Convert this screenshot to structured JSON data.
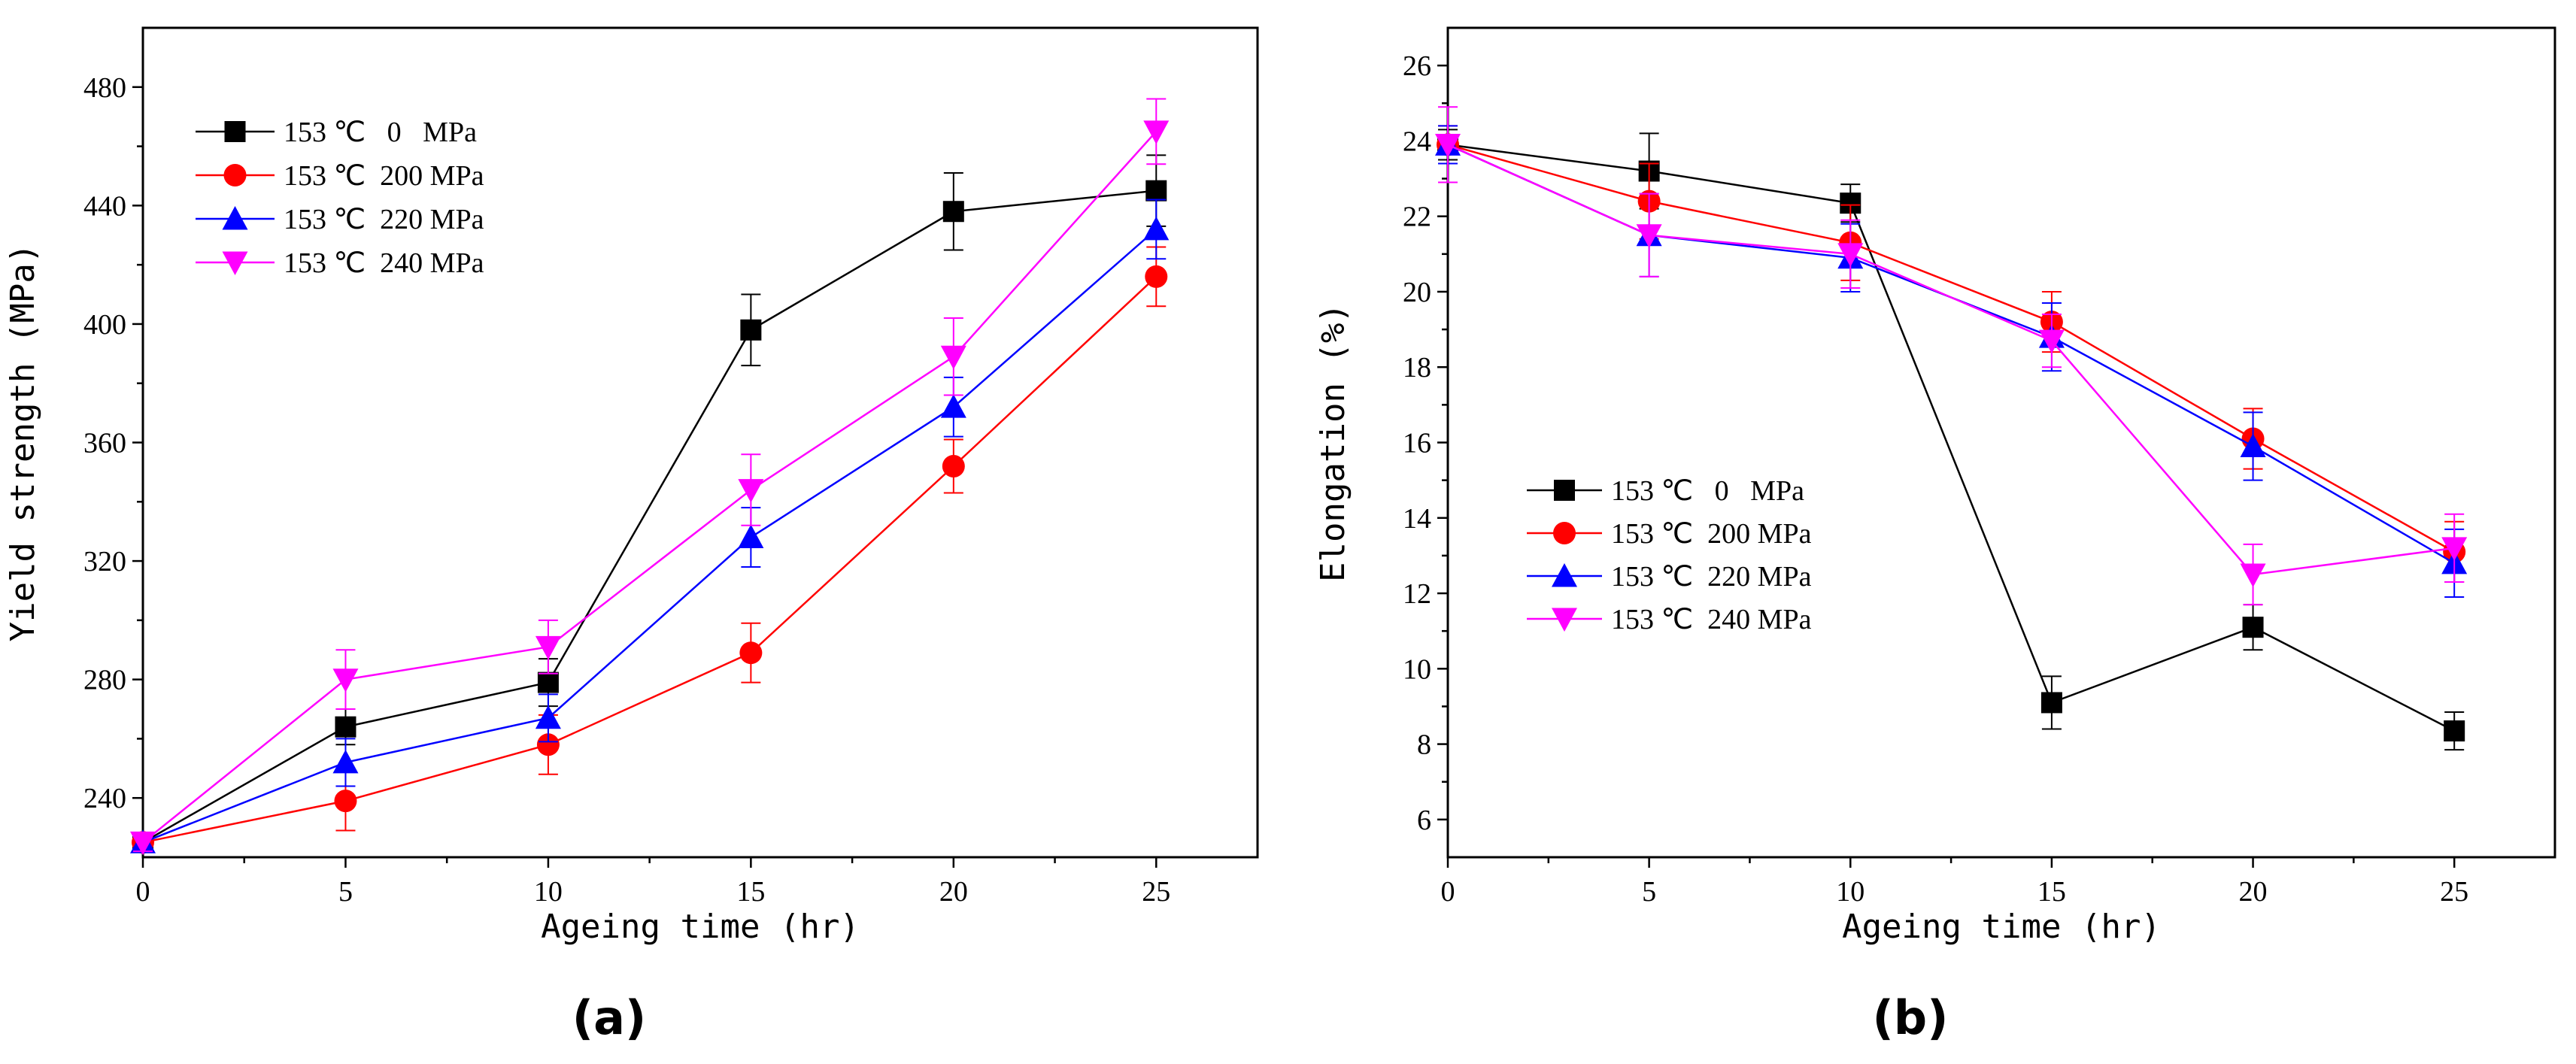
{
  "figure": {
    "panel_labels": [
      "(a)",
      "(b)"
    ]
  },
  "chart_data": [
    {
      "type": "line",
      "panel": "(a)",
      "title": "",
      "xlabel": "Ageing time (hr)",
      "ylabel": "Yield strength (MPa)",
      "xlim": [
        0,
        27.5
      ],
      "ylim": [
        220,
        500
      ],
      "xticks": [
        0,
        5,
        10,
        15,
        20,
        25
      ],
      "yticks": [
        240,
        280,
        320,
        360,
        400,
        440,
        480
      ],
      "grid": false,
      "legend_position": "top-left",
      "x": [
        0,
        5,
        10,
        15,
        20,
        25
      ],
      "series": [
        {
          "name": "153 ℃   0   MPa",
          "color": "#000000",
          "marker": "square",
          "values": [
            225,
            264,
            279,
            398,
            438,
            445
          ],
          "errors": [
            3,
            6,
            8,
            12,
            13,
            12
          ]
        },
        {
          "name": "153 ℃  200 MPa",
          "color": "#ff0000",
          "marker": "circle",
          "values": [
            225,
            239,
            258,
            289,
            352,
            416
          ],
          "errors": [
            3,
            10,
            10,
            10,
            9,
            10
          ]
        },
        {
          "name": "153 ℃  220 MPa",
          "color": "#0000ff",
          "marker": "triangle-up",
          "values": [
            225,
            252,
            267,
            328,
            372,
            432
          ],
          "errors": [
            3,
            8,
            8,
            10,
            10,
            10
          ]
        },
        {
          "name": "153 ℃  240 MPa",
          "color": "#ff00ff",
          "marker": "triangle-down",
          "values": [
            225,
            280,
            291,
            344,
            389,
            465
          ],
          "errors": [
            3,
            10,
            9,
            12,
            13,
            11
          ]
        }
      ]
    },
    {
      "type": "line",
      "panel": "(b)",
      "title": "",
      "xlabel": "Ageing time (hr)",
      "ylabel": "Elongation (%)",
      "xlim": [
        0,
        27.5
      ],
      "ylim": [
        5,
        27
      ],
      "xticks": [
        0,
        5,
        10,
        15,
        20,
        25
      ],
      "yticks": [
        6,
        8,
        10,
        12,
        14,
        16,
        18,
        20,
        22,
        24,
        26
      ],
      "grid": false,
      "legend_position": "bottom-left",
      "x": [
        0,
        5,
        10,
        15,
        20,
        25
      ],
      "series": [
        {
          "name": "153 ℃   0   MPa",
          "color": "#000000",
          "marker": "square",
          "values": [
            23.9,
            23.2,
            22.35,
            9.1,
            11.1,
            8.35
          ],
          "errors": [
            0.4,
            1.0,
            0.5,
            0.7,
            0.6,
            0.5
          ]
        },
        {
          "name": "153 ℃  200 MPa",
          "color": "#ff0000",
          "marker": "circle",
          "values": [
            23.9,
            22.4,
            21.3,
            19.2,
            16.1,
            13.1
          ],
          "errors": [
            0.5,
            1.0,
            1.0,
            0.8,
            0.8,
            0.8
          ]
        },
        {
          "name": "153 ℃  220 MPa",
          "color": "#0000ff",
          "marker": "triangle-up",
          "values": [
            23.9,
            21.5,
            20.9,
            18.8,
            15.9,
            12.8
          ],
          "errors": [
            0.5,
            1.1,
            0.9,
            0.9,
            0.9,
            0.9
          ]
        },
        {
          "name": "153 ℃  240 MPa",
          "color": "#ff00ff",
          "marker": "triangle-down",
          "values": [
            23.9,
            21.5,
            21.0,
            18.7,
            12.5,
            13.2
          ],
          "errors": [
            1.0,
            1.1,
            0.9,
            0.7,
            0.8,
            0.9
          ]
        }
      ]
    }
  ]
}
